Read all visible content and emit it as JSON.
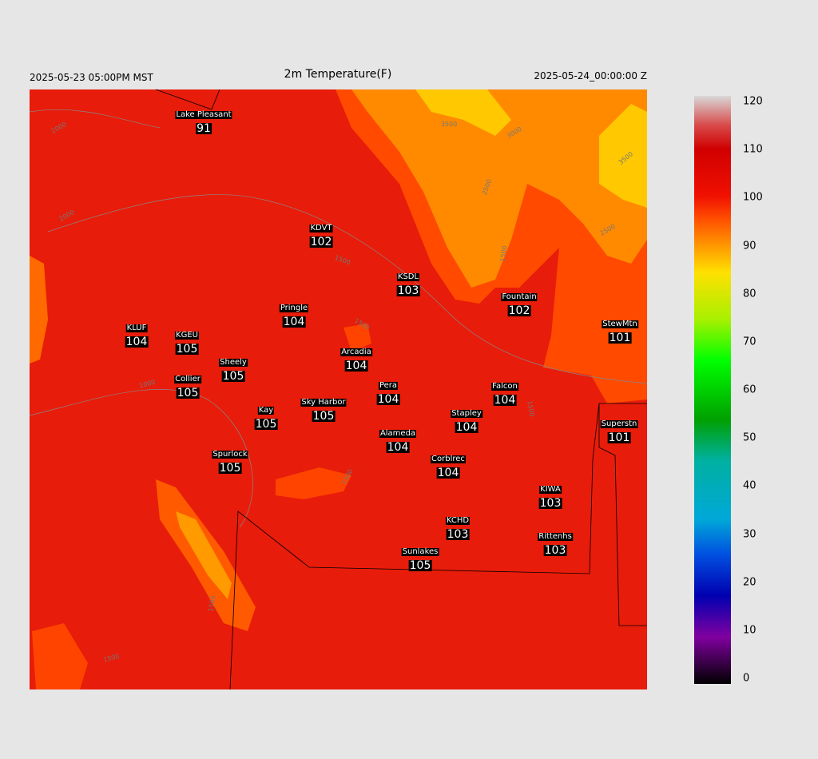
{
  "header": {
    "left": "2025-05-23 05:00PM MST",
    "title": "2m Temperature(F)",
    "right": "2025-05-24_00:00:00 Z"
  },
  "stations": [
    {
      "name": "Lake Pleasant",
      "value": 91
    },
    {
      "name": "KDVT",
      "value": 102
    },
    {
      "name": "KSDL",
      "value": 103
    },
    {
      "name": "Pringle",
      "value": 104
    },
    {
      "name": "Fountain",
      "value": 102
    },
    {
      "name": "KLUF",
      "value": 104
    },
    {
      "name": "KGEU",
      "value": 105
    },
    {
      "name": "StewMtn",
      "value": 101
    },
    {
      "name": "Arcadia",
      "value": 104
    },
    {
      "name": "Sheely",
      "value": 105
    },
    {
      "name": "Collier",
      "value": 105
    },
    {
      "name": "Pera",
      "value": 104
    },
    {
      "name": "Falcon",
      "value": 104
    },
    {
      "name": "Sky Harbor",
      "value": 105
    },
    {
      "name": "Kay",
      "value": 105
    },
    {
      "name": "Stapley",
      "value": 104
    },
    {
      "name": "Superstn",
      "value": 101
    },
    {
      "name": "Alameda",
      "value": 104
    },
    {
      "name": "Spurlock",
      "value": 105
    },
    {
      "name": "Corblrec",
      "value": 104
    },
    {
      "name": "KIWA",
      "value": 103
    },
    {
      "name": "KCHD",
      "value": 103
    },
    {
      "name": "Rittenhs",
      "value": 103
    },
    {
      "name": "Sunlakes",
      "value": 105
    }
  ],
  "contour_labels": [
    2000,
    3500,
    3000,
    3500,
    2500,
    2500,
    2000,
    1500,
    1500,
    1000,
    1500,
    1500,
    1500,
    1500,
    1500
  ],
  "colorbar": {
    "ticks": [
      0,
      10,
      20,
      30,
      40,
      50,
      60,
      70,
      80,
      90,
      100,
      110,
      120
    ]
  }
}
